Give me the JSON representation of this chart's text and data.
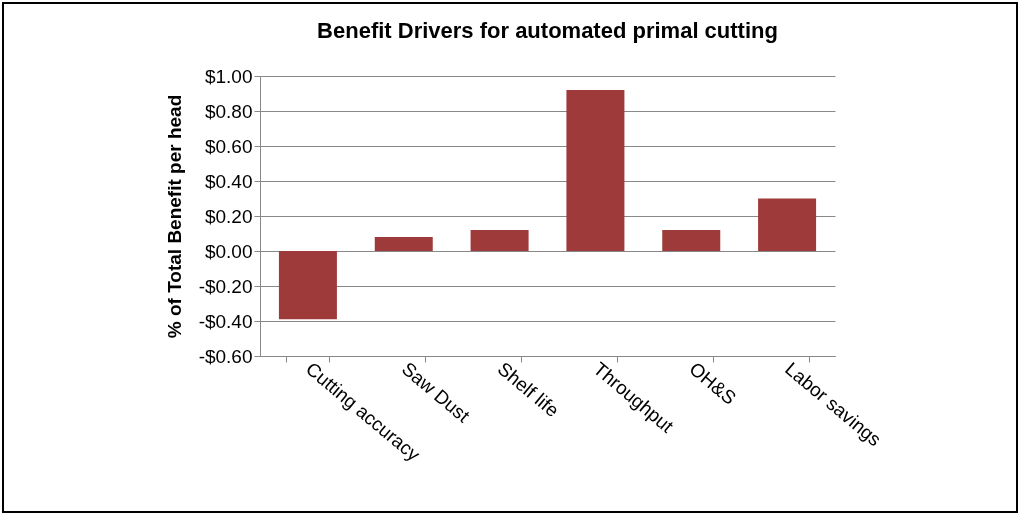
{
  "chart_data": {
    "type": "bar",
    "title": "Benefit Drivers for automated primal cutting",
    "ylabel": "% of Total Benefit  per head",
    "categories": [
      "Cutting accuracy",
      "Saw Dust",
      "Shelf life",
      "Throughput",
      "OH&S",
      "Labor savings"
    ],
    "values": [
      -0.39,
      0.08,
      0.12,
      0.92,
      0.12,
      0.3
    ],
    "color": "#9e3a3a",
    "ylim": [
      -0.6,
      1.0
    ],
    "yticks": [
      {
        "value": -0.6,
        "label": "-$0.60"
      },
      {
        "value": -0.4,
        "label": "-$0.40"
      },
      {
        "value": -0.2,
        "label": "-$0.20"
      },
      {
        "value": 0,
        "label": "$0.00"
      },
      {
        "value": 0.2,
        "label": "$0.20"
      },
      {
        "value": 0.4,
        "label": "$0.40"
      },
      {
        "value": 0.6,
        "label": "$0.60"
      },
      {
        "value": 0.8,
        "label": "$0.80"
      },
      {
        "value": 1.0,
        "label": "$1.00"
      }
    ],
    "grid": "y"
  }
}
